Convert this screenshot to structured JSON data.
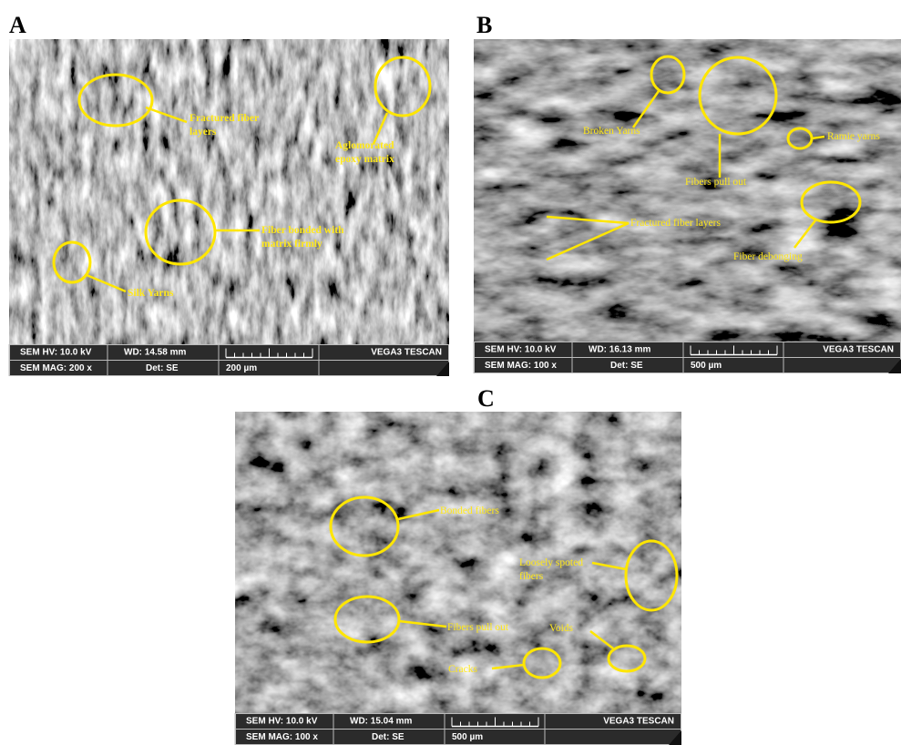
{
  "panels": [
    {
      "label": "A",
      "annotations": [
        {
          "lines": [
            "Fractured fiber",
            "layers"
          ]
        },
        {
          "lines": [
            "Aglomorated",
            "epoxy matrix"
          ]
        },
        {
          "lines": [
            "Fiber bonded with",
            "matrix firmly"
          ]
        },
        {
          "lines": [
            "Silk Yarns"
          ]
        }
      ],
      "info": {
        "hv": "SEM HV: 10.0 kV",
        "wd": "WD: 14.58 mm",
        "brand": "VEGA3 TESCAN",
        "mag": "SEM MAG: 200 x",
        "det": "Det: SE",
        "scale": "200 µm"
      }
    },
    {
      "label": "B",
      "annotations": [
        {
          "lines": [
            "Broken Yarns"
          ]
        },
        {
          "lines": [
            "Fibers pull out"
          ]
        },
        {
          "lines": [
            "Ramie yarns"
          ]
        },
        {
          "lines": [
            "Fractured fiber layers"
          ]
        },
        {
          "lines": [
            "Fiber debonging"
          ]
        }
      ],
      "info": {
        "hv": "SEM HV: 10.0 kV",
        "wd": "WD: 16.13 mm",
        "brand": "VEGA3 TESCAN",
        "mag": "SEM MAG: 100 x",
        "det": "Det: SE",
        "scale": "500 µm"
      }
    },
    {
      "label": "C",
      "annotations": [
        {
          "lines": [
            "Bonded fibers"
          ]
        },
        {
          "lines": [
            "Loosely spoted",
            "fibers"
          ]
        },
        {
          "lines": [
            "Fibers pull out"
          ]
        },
        {
          "lines": [
            "Voids"
          ]
        },
        {
          "lines": [
            "Cracks"
          ]
        }
      ],
      "info": {
        "hv": "SEM HV: 10.0 kV",
        "wd": "WD: 15.04 mm",
        "brand": "VEGA3 TESCAN",
        "mag": "SEM MAG: 100 x",
        "det": "Det: SE",
        "scale": "500 µm"
      }
    }
  ]
}
